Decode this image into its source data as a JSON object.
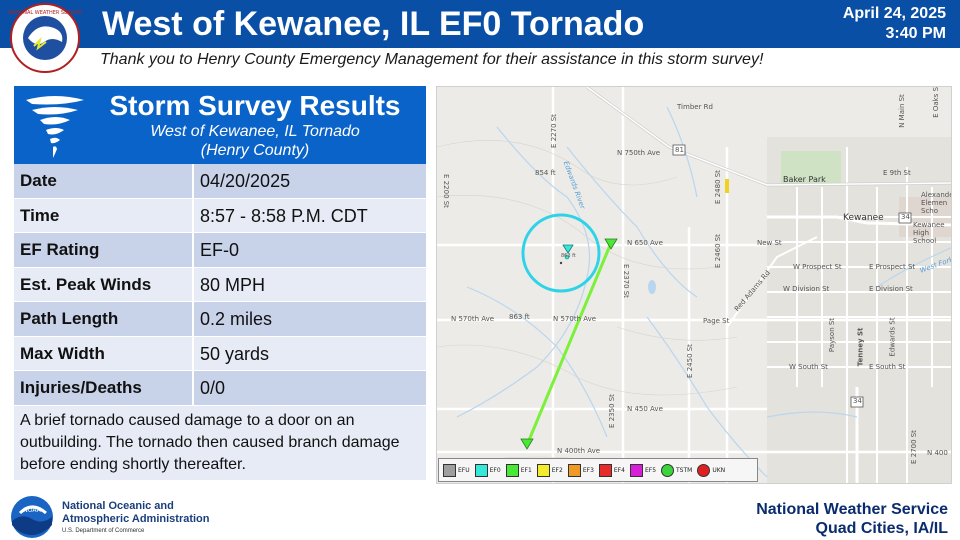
{
  "header": {
    "title": "West of Kewanee, IL EF0 Tornado",
    "date": "April 24, 2025",
    "time": "3:40 PM",
    "thanks": "Thank you to Henry County Emergency Management for their assistance in this storm survey!"
  },
  "survey": {
    "heading": "Storm Survey Results",
    "subtitle_line1": "West of Kewanee, IL Tornado",
    "subtitle_line2": "(Henry County)",
    "rows": [
      {
        "label": "Date",
        "value": "04/20/2025"
      },
      {
        "label": "Time",
        "value": "8:57 - 8:58 P.M. CDT"
      },
      {
        "label": "EF Rating",
        "value": "EF-0"
      },
      {
        "label": "Est. Peak Winds",
        "value": "80 MPH"
      },
      {
        "label": "Path Length",
        "value": "0.2 miles"
      },
      {
        "label": "Max Width",
        "value": "50 yards"
      },
      {
        "label": "Injuries/Deaths",
        "value": "0/0"
      }
    ],
    "description": "A brief tornado caused damage to a door on an outbuilding. The tornado then caused branch damage before ending shortly thereafter."
  },
  "map": {
    "labels": {
      "timber_rd": "Timber Rd",
      "n750": "N 750th Ave",
      "us81": "81",
      "e2270": "E 2270 St",
      "e2200": "E 2200 St",
      "e2480": "E 2480 St",
      "e2460": "E 2460 St",
      "e2370": "E 2370 St",
      "e2350": "E 2350 St",
      "e2450": "E 2450 St",
      "e2700": "E 2700 St",
      "n650": "N 650 Ave",
      "n570": "N 570th Ave",
      "n570b": "N 570th Ave",
      "n450": "N 450 Ave",
      "n400": "N 400th Ave",
      "n400b": "N 400",
      "elev854": "854 ft",
      "elev863": "863 ft",
      "elev863b": "863 ft",
      "edwards_river": "Edwards River",
      "baker_park": "Baker Park",
      "kewanee": "Kewanee",
      "us34": "34",
      "us34b": "34",
      "kewanee_hs": "Kewanee High School",
      "alexander": "Alexande Elemen Scho",
      "new_st": "New St",
      "w_prospect": "W Prospect St",
      "e_prospect": "E Prospect St",
      "w_division": "W Division St",
      "e_division": "E Division St",
      "page_st": "Page St",
      "w_south": "W South St",
      "e_south": "E South St",
      "main_st": "N Main St",
      "e9th": "E 9th St",
      "payson": "Payson St",
      "tenney": "Tenney St",
      "edwards_st": "Edwards St",
      "red_adams": "Red Adams Rd",
      "west_fork": "West Fork",
      "e_oaks": "E Oaks St"
    },
    "legend": [
      {
        "label": "EFU",
        "color": "#9e9e9e"
      },
      {
        "label": "EF0",
        "color": "#37e8d8"
      },
      {
        "label": "EF1",
        "color": "#49e837"
      },
      {
        "label": "EF2",
        "color": "#f2ec2c"
      },
      {
        "label": "EF3",
        "color": "#f09a25"
      },
      {
        "label": "EF4",
        "color": "#e82a2a"
      },
      {
        "label": "EF5",
        "color": "#d61fd6"
      },
      {
        "label": "TSTM",
        "color": "#3bd43b"
      },
      {
        "label": "UKN",
        "color": "#e02020"
      }
    ]
  },
  "footer": {
    "noaa_line1": "National Oceanic and",
    "noaa_line2": "Atmospheric Administration",
    "noaa_dept": "U.S. Department of Commerce",
    "nws_line1": "National Weather Service",
    "nws_line2": "Quad Cities, IA/IL",
    "noaa_badge": "NOAA",
    "nws_ring": "NATIONAL WEATHER SERVICE"
  },
  "colors": {
    "header_blue": "#0a4fa6",
    "panel_blue": "#0a63c9",
    "track_green": "#7cf03a",
    "circle_cyan": "#2fd3e8"
  }
}
